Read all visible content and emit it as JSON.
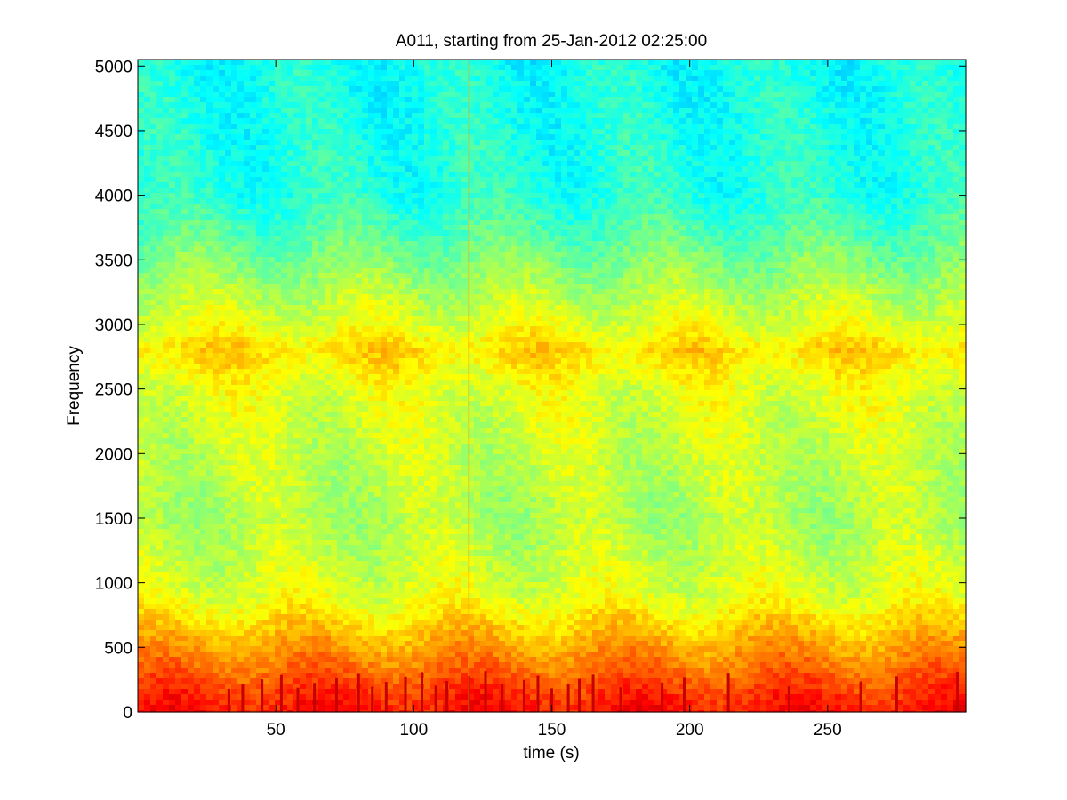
{
  "chart_data": {
    "type": "heatmap",
    "title": "A011, starting from 25-Jan-2012 02:25:00",
    "xlabel": "time (s)",
    "ylabel": "Frequency",
    "xlim": [
      0,
      300
    ],
    "ylim": [
      0,
      5050
    ],
    "x_ticks": [
      {
        "value": 50,
        "label": "50"
      },
      {
        "value": 100,
        "label": "100"
      },
      {
        "value": 150,
        "label": "150"
      },
      {
        "value": 200,
        "label": "200"
      },
      {
        "value": 250,
        "label": "250"
      }
    ],
    "y_ticks": [
      {
        "value": 0,
        "label": "0"
      },
      {
        "value": 500,
        "label": "500"
      },
      {
        "value": 1000,
        "label": "1000"
      },
      {
        "value": 1500,
        "label": "1500"
      },
      {
        "value": 2000,
        "label": "2000"
      },
      {
        "value": 2500,
        "label": "2500"
      },
      {
        "value": 3000,
        "label": "3000"
      },
      {
        "value": 3500,
        "label": "3500"
      },
      {
        "value": 4000,
        "label": "4000"
      },
      {
        "value": 4500,
        "label": "4500"
      },
      {
        "value": 5000,
        "label": "5000"
      }
    ],
    "colormap": "jet",
    "frequency_intensity_profile": [
      {
        "frequency": 0,
        "level": 0.86
      },
      {
        "frequency": 100,
        "level": 0.84
      },
      {
        "frequency": 300,
        "level": 0.78
      },
      {
        "frequency": 500,
        "level": 0.72
      },
      {
        "frequency": 700,
        "level": 0.66
      },
      {
        "frequency": 900,
        "level": 0.6
      },
      {
        "frequency": 1200,
        "level": 0.57
      },
      {
        "frequency": 1500,
        "level": 0.55
      },
      {
        "frequency": 2000,
        "level": 0.57
      },
      {
        "frequency": 2500,
        "level": 0.6
      },
      {
        "frequency": 2800,
        "level": 0.66
      },
      {
        "frequency": 3000,
        "level": 0.6
      },
      {
        "frequency": 3400,
        "level": 0.52
      },
      {
        "frequency": 3700,
        "level": 0.46
      },
      {
        "frequency": 4000,
        "level": 0.41
      },
      {
        "frequency": 5050,
        "level": 0.39
      }
    ],
    "low_frequency_bursts_s": [
      33,
      38,
      45,
      52,
      58,
      64,
      72,
      80,
      85,
      90,
      97,
      103,
      108,
      112,
      120,
      126,
      132,
      140,
      145,
      150,
      156,
      160,
      165,
      175,
      190,
      198,
      214,
      236,
      262,
      275,
      297
    ],
    "broadband_transient_s": 120,
    "grid": false,
    "legend": "none"
  }
}
